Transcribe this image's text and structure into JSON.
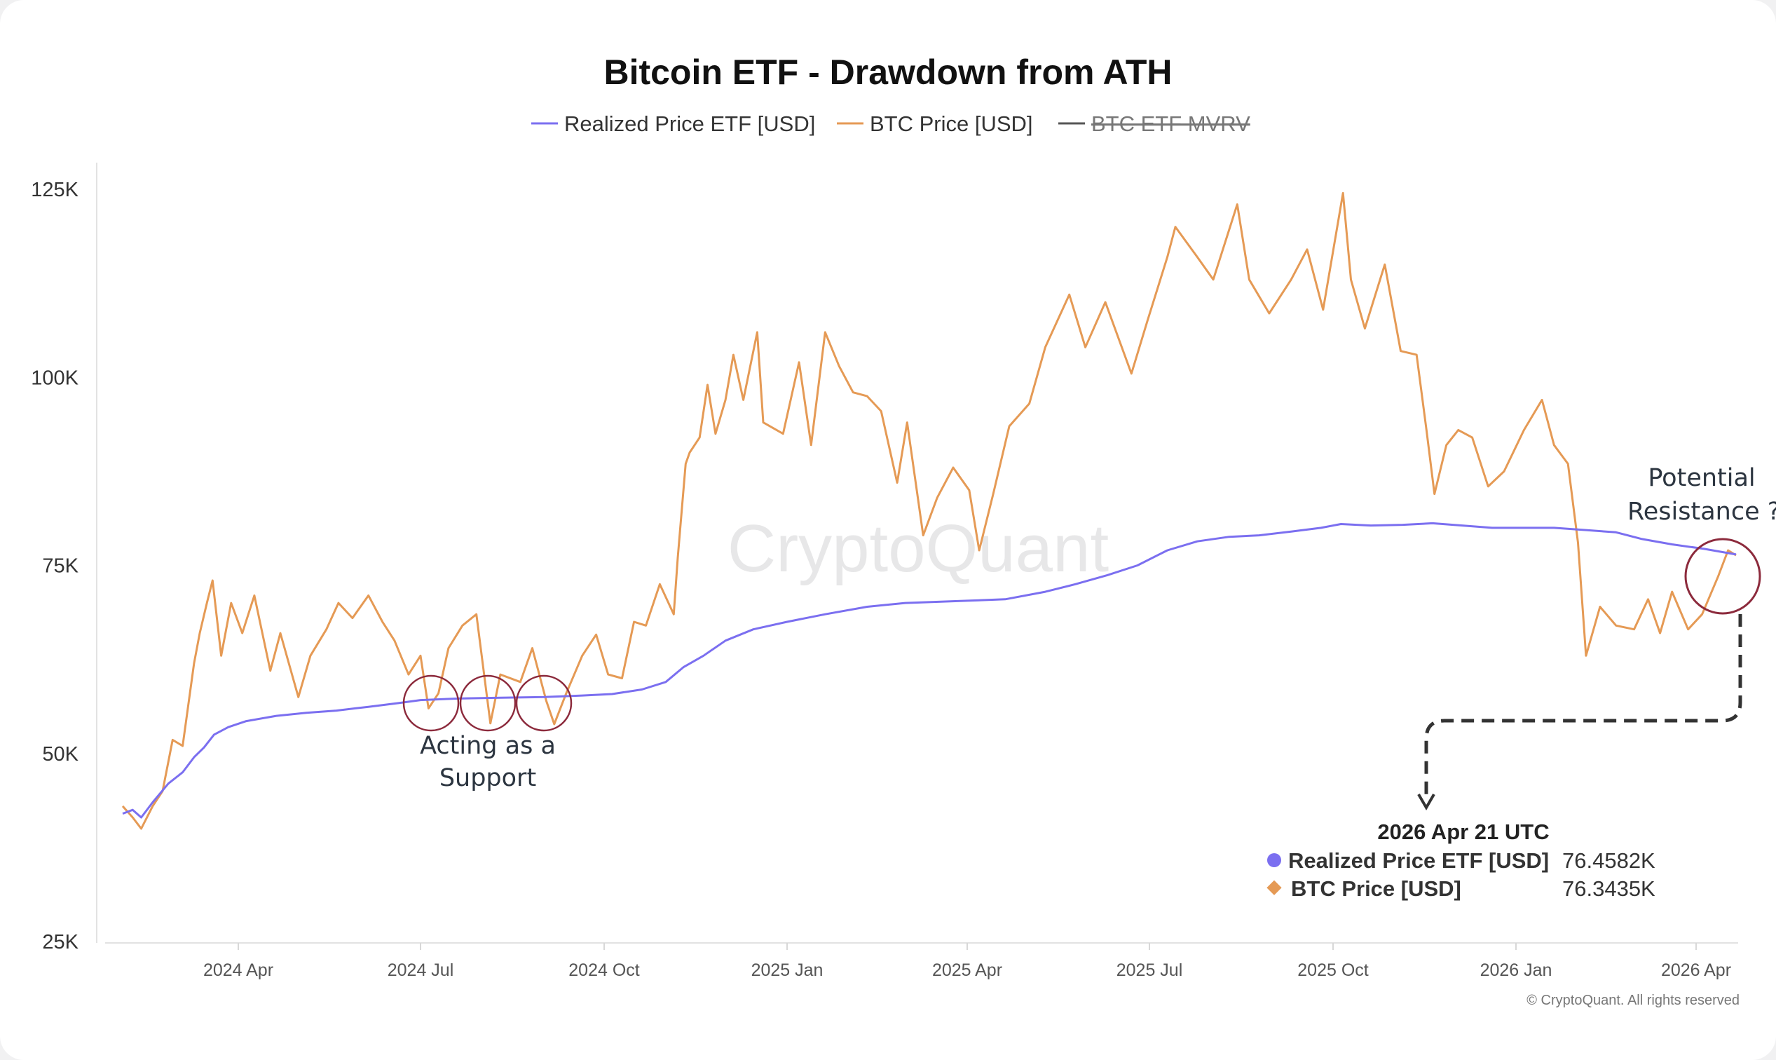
{
  "chart_data": {
    "type": "line",
    "title": "Bitcoin ETF - Drawdown from ATH",
    "ylim": [
      25000,
      125000
    ],
    "y_ticks": [
      {
        "value": 125000,
        "label": "125K"
      },
      {
        "value": 100000,
        "label": "100K"
      },
      {
        "value": 75000,
        "label": "75K"
      },
      {
        "value": 50000,
        "label": "50K"
      },
      {
        "value": 25000,
        "label": "25K"
      }
    ],
    "x_ticks": [
      "2024 Apr",
      "2024 Jul",
      "2024 Oct",
      "2025 Jan",
      "2025 Apr",
      "2025 Jul",
      "2025 Oct",
      "2026 Jan",
      "2026 Apr"
    ],
    "x_tick_dates": [
      "2024-04-01",
      "2024-07-01",
      "2024-10-01",
      "2025-01-01",
      "2025-04-01",
      "2025-07-01",
      "2025-10-01",
      "2026-01-01",
      "2026-04-01"
    ],
    "x_range": [
      "2024-01-11",
      "2026-04-21"
    ],
    "grid": false,
    "legend_position": "top-center",
    "legend": [
      {
        "label": "Realized Price ETF [USD]",
        "color": "#7b6ff0",
        "hidden": false
      },
      {
        "label": "BTC Price [USD]",
        "color": "#e59a55",
        "hidden": false
      },
      {
        "label": "BTC ETF MVRV",
        "color": "#555555",
        "hidden": true
      }
    ],
    "series": [
      {
        "name": "Realized Price ETF [USD]",
        "color": "#7b6ff0",
        "points": [
          [
            "2024-01-11",
            42000
          ],
          [
            "2024-01-18",
            42500
          ],
          [
            "2024-01-24",
            41500
          ],
          [
            "2024-02-01",
            43500
          ],
          [
            "2024-02-12",
            46000
          ],
          [
            "2024-02-22",
            47500
          ],
          [
            "2024-03-01",
            49500
          ],
          [
            "2024-03-08",
            50800
          ],
          [
            "2024-03-15",
            52500
          ],
          [
            "2024-03-25",
            53500
          ],
          [
            "2024-04-05",
            54300
          ],
          [
            "2024-04-20",
            55000
          ],
          [
            "2024-05-05",
            55400
          ],
          [
            "2024-05-20",
            55700
          ],
          [
            "2024-06-05",
            56200
          ],
          [
            "2024-06-20",
            56700
          ],
          [
            "2024-07-01",
            57100
          ],
          [
            "2024-07-20",
            57300
          ],
          [
            "2024-08-10",
            57400
          ],
          [
            "2024-09-01",
            57500
          ],
          [
            "2024-09-20",
            57700
          ],
          [
            "2024-10-05",
            57900
          ],
          [
            "2024-10-20",
            58500
          ],
          [
            "2024-11-01",
            59500
          ],
          [
            "2024-11-10",
            61500
          ],
          [
            "2024-11-20",
            63000
          ],
          [
            "2024-12-01",
            65000
          ],
          [
            "2024-12-15",
            66500
          ],
          [
            "2025-01-01",
            67500
          ],
          [
            "2025-01-20",
            68500
          ],
          [
            "2025-02-10",
            69500
          ],
          [
            "2025-03-01",
            70000
          ],
          [
            "2025-04-01",
            70300
          ],
          [
            "2025-04-20",
            70500
          ],
          [
            "2025-05-10",
            71500
          ],
          [
            "2025-05-25",
            72500
          ],
          [
            "2025-06-10",
            73700
          ],
          [
            "2025-06-25",
            75000
          ],
          [
            "2025-07-10",
            77000
          ],
          [
            "2025-07-25",
            78200
          ],
          [
            "2025-08-10",
            78800
          ],
          [
            "2025-08-25",
            79000
          ],
          [
            "2025-09-10",
            79500
          ],
          [
            "2025-09-25",
            80000
          ],
          [
            "2025-10-05",
            80500
          ],
          [
            "2025-10-20",
            80300
          ],
          [
            "2025-11-05",
            80400
          ],
          [
            "2025-11-20",
            80600
          ],
          [
            "2025-12-05",
            80300
          ],
          [
            "2025-12-20",
            80000
          ],
          [
            "2026-01-05",
            80000
          ],
          [
            "2026-01-20",
            80000
          ],
          [
            "2026-02-05",
            79700
          ],
          [
            "2026-02-20",
            79400
          ],
          [
            "2026-03-05",
            78500
          ],
          [
            "2026-03-20",
            77800
          ],
          [
            "2026-04-05",
            77200
          ],
          [
            "2026-04-21",
            76458.2
          ]
        ]
      },
      {
        "name": "BTC Price [USD]",
        "color": "#e59a55",
        "points": [
          [
            "2024-01-11",
            43000
          ],
          [
            "2024-01-18",
            41500
          ],
          [
            "2024-01-24",
            40000
          ],
          [
            "2024-02-01",
            43000
          ],
          [
            "2024-02-08",
            45000
          ],
          [
            "2024-02-15",
            51800
          ],
          [
            "2024-02-22",
            51000
          ],
          [
            "2024-03-01",
            62000
          ],
          [
            "2024-03-05",
            66000
          ],
          [
            "2024-03-10",
            70000
          ],
          [
            "2024-03-14",
            73000
          ],
          [
            "2024-03-20",
            63000
          ],
          [
            "2024-03-27",
            70000
          ],
          [
            "2024-04-03",
            66000
          ],
          [
            "2024-04-09",
            71000
          ],
          [
            "2024-04-17",
            61000
          ],
          [
            "2024-04-22",
            66000
          ],
          [
            "2024-05-01",
            57500
          ],
          [
            "2024-05-07",
            63000
          ],
          [
            "2024-05-15",
            66500
          ],
          [
            "2024-05-21",
            70000
          ],
          [
            "2024-05-28",
            68000
          ],
          [
            "2024-06-05",
            71000
          ],
          [
            "2024-06-12",
            67500
          ],
          [
            "2024-06-18",
            65000
          ],
          [
            "2024-06-25",
            60500
          ],
          [
            "2024-07-01",
            63000
          ],
          [
            "2024-07-05",
            56000
          ],
          [
            "2024-07-10",
            58000
          ],
          [
            "2024-07-15",
            64000
          ],
          [
            "2024-07-22",
            67000
          ],
          [
            "2024-07-29",
            68500
          ],
          [
            "2024-08-05",
            54000
          ],
          [
            "2024-08-10",
            60500
          ],
          [
            "2024-08-20",
            59500
          ],
          [
            "2024-08-26",
            64000
          ],
          [
            "2024-09-02",
            57000
          ],
          [
            "2024-09-06",
            53900
          ],
          [
            "2024-09-12",
            58000
          ],
          [
            "2024-09-20",
            63000
          ],
          [
            "2024-09-27",
            65800
          ],
          [
            "2024-10-03",
            60500
          ],
          [
            "2024-10-10",
            60000
          ],
          [
            "2024-10-16",
            67500
          ],
          [
            "2024-10-22",
            67000
          ],
          [
            "2024-10-29",
            72500
          ],
          [
            "2024-11-05",
            68500
          ],
          [
            "2024-11-07",
            76000
          ],
          [
            "2024-11-11",
            88500
          ],
          [
            "2024-11-13",
            90000
          ],
          [
            "2024-11-18",
            92000
          ],
          [
            "2024-11-22",
            99000
          ],
          [
            "2024-11-26",
            92500
          ],
          [
            "2024-12-01",
            97000
          ],
          [
            "2024-12-05",
            103000
          ],
          [
            "2024-12-10",
            97000
          ],
          [
            "2024-12-17",
            106000
          ],
          [
            "2024-12-20",
            94000
          ],
          [
            "2024-12-30",
            92500
          ],
          [
            "2025-01-07",
            102000
          ],
          [
            "2025-01-13",
            91000
          ],
          [
            "2025-01-20",
            106000
          ],
          [
            "2025-01-27",
            101500
          ],
          [
            "2025-02-03",
            98000
          ],
          [
            "2025-02-10",
            97500
          ],
          [
            "2025-02-17",
            95500
          ],
          [
            "2025-02-25",
            86000
          ],
          [
            "2025-03-02",
            94000
          ],
          [
            "2025-03-10",
            79000
          ],
          [
            "2025-03-17",
            84000
          ],
          [
            "2025-03-25",
            88000
          ],
          [
            "2025-04-02",
            85000
          ],
          [
            "2025-04-07",
            77000
          ],
          [
            "2025-04-14",
            84500
          ],
          [
            "2025-04-22",
            93500
          ],
          [
            "2025-05-02",
            96500
          ],
          [
            "2025-05-10",
            104000
          ],
          [
            "2025-05-22",
            111000
          ],
          [
            "2025-05-30",
            104000
          ],
          [
            "2025-06-09",
            110000
          ],
          [
            "2025-06-22",
            100500
          ],
          [
            "2025-06-30",
            107500
          ],
          [
            "2025-07-10",
            116000
          ],
          [
            "2025-07-14",
            120000
          ],
          [
            "2025-07-25",
            116000
          ],
          [
            "2025-08-02",
            113000
          ],
          [
            "2025-08-14",
            123000
          ],
          [
            "2025-08-20",
            113000
          ],
          [
            "2025-08-30",
            108500
          ],
          [
            "2025-09-10",
            113000
          ],
          [
            "2025-09-18",
            117000
          ],
          [
            "2025-09-26",
            109000
          ],
          [
            "2025-10-06",
            124500
          ],
          [
            "2025-10-10",
            113000
          ],
          [
            "2025-10-17",
            106500
          ],
          [
            "2025-10-27",
            115000
          ],
          [
            "2025-11-04",
            103500
          ],
          [
            "2025-11-12",
            103000
          ],
          [
            "2025-11-17",
            93000
          ],
          [
            "2025-11-21",
            84500
          ],
          [
            "2025-11-27",
            91000
          ],
          [
            "2025-12-03",
            93000
          ],
          [
            "2025-12-10",
            92000
          ],
          [
            "2025-12-18",
            85500
          ],
          [
            "2025-12-26",
            87500
          ],
          [
            "2026-01-05",
            93000
          ],
          [
            "2026-01-14",
            97000
          ],
          [
            "2026-01-20",
            91000
          ],
          [
            "2026-01-27",
            88500
          ],
          [
            "2026-02-01",
            78000
          ],
          [
            "2026-02-05",
            63000
          ],
          [
            "2026-02-12",
            69500
          ],
          [
            "2026-02-20",
            67000
          ],
          [
            "2026-03-01",
            66500
          ],
          [
            "2026-03-08",
            70500
          ],
          [
            "2026-03-14",
            66000
          ],
          [
            "2026-03-20",
            71500
          ],
          [
            "2026-03-28",
            66500
          ],
          [
            "2026-04-04",
            68500
          ],
          [
            "2026-04-12",
            73500
          ],
          [
            "2026-04-17",
            77000
          ],
          [
            "2026-04-21",
            76343.5
          ]
        ]
      }
    ],
    "annotations": {
      "support_text_line1": "Acting as a",
      "support_text_line2": "Support",
      "resistance_text_line1": "Potential",
      "resistance_text_line2": "Resistance ?"
    },
    "tooltip": {
      "date": "2026 Apr 21 UTC",
      "rows": [
        {
          "label": "Realized Price ETF [USD]",
          "value": "76.4582K",
          "color": "#7b6ff0"
        },
        {
          "label": "BTC Price [USD]",
          "value": "76.3435K",
          "color": "#e59a55"
        }
      ]
    },
    "watermark": "CryptoQuant",
    "copyright": "© CryptoQuant. All rights reserved"
  }
}
